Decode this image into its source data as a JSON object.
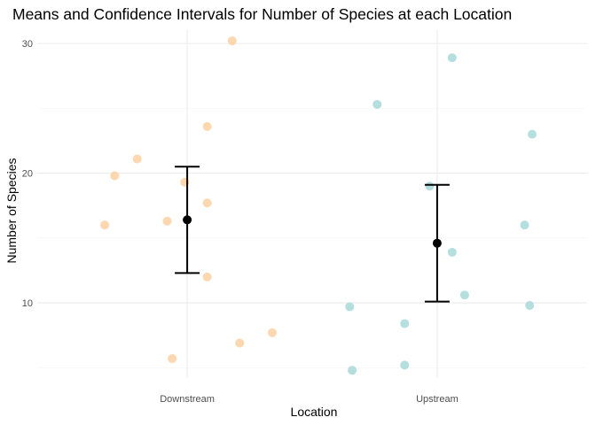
{
  "chart_data": {
    "type": "scatter",
    "title": "Means and Confidence Intervals for Number of Species at each Location",
    "xlabel": "Location",
    "ylabel": "Number of Species",
    "categories": [
      "Downstream",
      "Upstream"
    ],
    "y_ticks": [
      10,
      20,
      30
    ],
    "y_minor_ticks": [
      5,
      15,
      25
    ],
    "ylim": [
      4.2,
      31.1
    ],
    "grid": true,
    "colors": {
      "Downstream": "#fdd0a2",
      "Upstream": "#a8d8d8",
      "summary": "#000000"
    },
    "points": [
      {
        "location": "Downstream",
        "offset": -0.33,
        "y": 16.0
      },
      {
        "location": "Downstream",
        "offset": -0.29,
        "y": 19.8
      },
      {
        "location": "Downstream",
        "offset": -0.2,
        "y": 21.1
      },
      {
        "location": "Downstream",
        "offset": -0.08,
        "y": 16.3
      },
      {
        "location": "Downstream",
        "offset": -0.06,
        "y": 5.7
      },
      {
        "location": "Downstream",
        "offset": -0.01,
        "y": 19.3
      },
      {
        "location": "Downstream",
        "offset": 0.08,
        "y": 23.6
      },
      {
        "location": "Downstream",
        "offset": 0.08,
        "y": 17.7
      },
      {
        "location": "Downstream",
        "offset": 0.08,
        "y": 12.0
      },
      {
        "location": "Downstream",
        "offset": 0.18,
        "y": 30.2
      },
      {
        "location": "Downstream",
        "offset": 0.21,
        "y": 6.9
      },
      {
        "location": "Downstream",
        "offset": 0.34,
        "y": 7.7
      },
      {
        "location": "Upstream",
        "offset": -0.35,
        "y": 9.7
      },
      {
        "location": "Upstream",
        "offset": -0.34,
        "y": 4.8
      },
      {
        "location": "Upstream",
        "offset": -0.24,
        "y": 25.3
      },
      {
        "location": "Upstream",
        "offset": -0.13,
        "y": 8.4
      },
      {
        "location": "Upstream",
        "offset": -0.13,
        "y": 5.2
      },
      {
        "location": "Upstream",
        "offset": -0.03,
        "y": 19.0
      },
      {
        "location": "Upstream",
        "offset": 0.06,
        "y": 28.9
      },
      {
        "location": "Upstream",
        "offset": 0.06,
        "y": 13.9
      },
      {
        "location": "Upstream",
        "offset": 0.11,
        "y": 10.6
      },
      {
        "location": "Upstream",
        "offset": 0.35,
        "y": 16.0
      },
      {
        "location": "Upstream",
        "offset": 0.37,
        "y": 9.8
      },
      {
        "location": "Upstream",
        "offset": 0.38,
        "y": 23.0
      }
    ],
    "summary": [
      {
        "location": "Downstream",
        "mean": 16.4,
        "ci_low": 12.3,
        "ci_high": 20.5
      },
      {
        "location": "Upstream",
        "mean": 14.6,
        "ci_low": 10.1,
        "ci_high": 19.1
      }
    ]
  }
}
